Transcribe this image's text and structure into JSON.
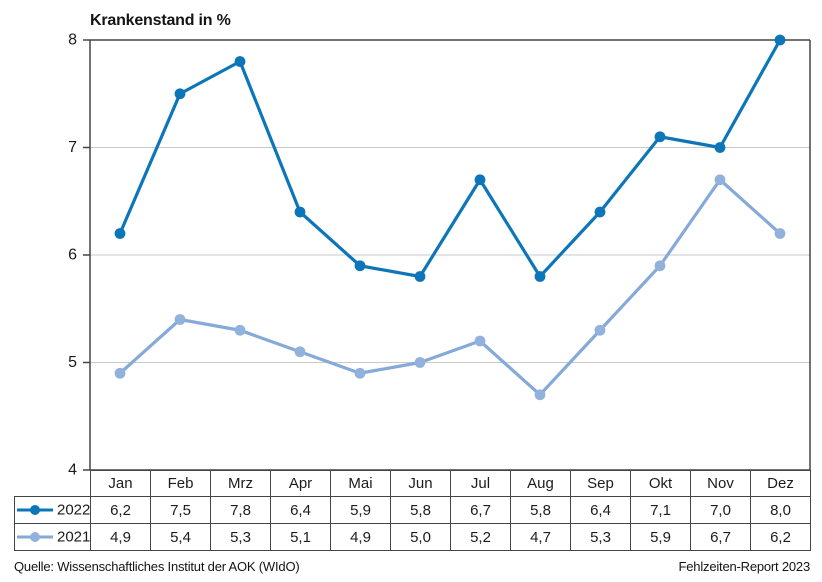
{
  "title": "Krankenstand in %",
  "chart_data": {
    "type": "line",
    "title": "Krankenstand in %",
    "categories": [
      "Jan",
      "Feb",
      "Mrz",
      "Apr",
      "Mai",
      "Jun",
      "Jul",
      "Aug",
      "Sep",
      "Okt",
      "Nov",
      "Dez"
    ],
    "series": [
      {
        "name": "2022",
        "values": [
          6.2,
          7.5,
          7.8,
          6.4,
          5.9,
          5.8,
          6.7,
          5.8,
          6.4,
          7.1,
          7.0,
          8.0
        ],
        "values_display": [
          "6,2",
          "7,5",
          "7,8",
          "6,4",
          "5,9",
          "5,8",
          "6,7",
          "5,8",
          "6,4",
          "7,1",
          "7,0",
          "8,0"
        ],
        "color": "#0d76b8",
        "marker_color": "#0d76b8"
      },
      {
        "name": "2021",
        "values": [
          4.9,
          5.4,
          5.3,
          5.1,
          4.9,
          5.0,
          5.2,
          4.7,
          5.3,
          5.9,
          6.7,
          6.2
        ],
        "values_display": [
          "4,9",
          "5,4",
          "5,3",
          "5,1",
          "4,9",
          "5,0",
          "5,2",
          "4,7",
          "5,3",
          "5,9",
          "6,7",
          "6,2"
        ],
        "color": "#85aad9",
        "marker_color": "#92b2dd"
      }
    ],
    "xlabel": "",
    "ylabel": "",
    "ylim": [
      4,
      8
    ],
    "yticks": [
      4,
      5,
      6,
      7,
      8
    ],
    "grid": "horizontal-light",
    "legend_position": "table-left"
  },
  "footer": {
    "source": "Quelle: Wissenschaftliches Institut der AOK (WIdO)",
    "report": "Fehlzeiten-Report 2023"
  },
  "colors": {
    "grid": "#c9c9c9",
    "axis": "#454545",
    "table_border": "#454545",
    "text": "#1c1c1c",
    "series_2022": "#0d76b8",
    "series_2021": "#85aad9"
  }
}
